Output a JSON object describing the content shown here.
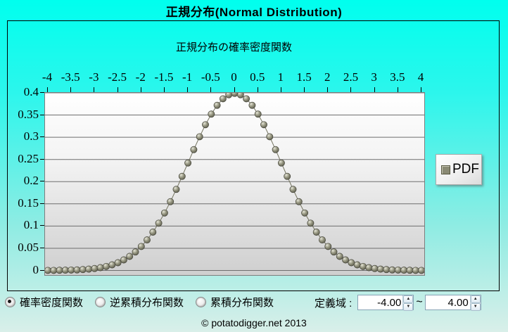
{
  "window": {
    "title": "正規分布(Normal Distribution)",
    "footer": "© potatodigger.net 2013"
  },
  "chart": {
    "title": "正規分布の確率密度関数",
    "legend": {
      "label": "PDF",
      "marker_color": "#8a8a74",
      "position": "right"
    }
  },
  "chart_data": {
    "type": "scatter",
    "title": "正規分布の確率密度関数",
    "xlabel": "",
    "ylabel": "",
    "xlim": [
      -4,
      4
    ],
    "ylim": [
      0,
      0.4
    ],
    "grid": "horizontal",
    "legend_position": "right",
    "x_tick_labels": [
      "-4",
      "-3.5",
      "-3",
      "-2.5",
      "-2",
      "-1.5",
      "-1",
      "-0.5",
      "0",
      "0.5",
      "1",
      "1.5",
      "2",
      "2.5",
      "3",
      "3.5",
      "4"
    ],
    "y_tick_labels": [
      "0.4",
      "0.35",
      "0.3",
      "0.25",
      "0.2",
      "0.15",
      "0.1",
      "0.05",
      "0"
    ],
    "series": [
      {
        "name": "PDF",
        "x": [
          -4,
          -3.875,
          -3.75,
          -3.625,
          -3.5,
          -3.375,
          -3.25,
          -3.125,
          -3,
          -2.875,
          -2.75,
          -2.625,
          -2.5,
          -2.375,
          -2.25,
          -2.125,
          -2,
          -1.875,
          -1.75,
          -1.625,
          -1.5,
          -1.375,
          -1.25,
          -1.125,
          -1,
          -0.875,
          -0.75,
          -0.625,
          -0.5,
          -0.375,
          -0.25,
          -0.125,
          0,
          0.125,
          0.25,
          0.375,
          0.5,
          0.625,
          0.75,
          0.875,
          1,
          1.125,
          1.25,
          1.375,
          1.5,
          1.625,
          1.75,
          1.875,
          2,
          2.125,
          2.25,
          2.375,
          2.5,
          2.625,
          2.75,
          2.875,
          3,
          3.125,
          3.25,
          3.375,
          3.5,
          3.625,
          3.75,
          3.875,
          4
        ],
        "y": [
          0.0001,
          0.0002,
          0.0004,
          0.0006,
          0.0009,
          0.0013,
          0.002,
          0.003,
          0.0044,
          0.0064,
          0.0091,
          0.0127,
          0.0175,
          0.0238,
          0.0317,
          0.0417,
          0.054,
          0.0688,
          0.0863,
          0.1065,
          0.1295,
          0.155,
          0.1826,
          0.2119,
          0.242,
          0.2721,
          0.3011,
          0.3282,
          0.3521,
          0.3719,
          0.3867,
          0.3958,
          0.3989,
          0.3958,
          0.3867,
          0.3719,
          0.3521,
          0.3282,
          0.3011,
          0.2721,
          0.242,
          0.2119,
          0.1826,
          0.155,
          0.1295,
          0.1065,
          0.0863,
          0.0688,
          0.054,
          0.0417,
          0.0317,
          0.0238,
          0.0175,
          0.0127,
          0.0091,
          0.0064,
          0.0044,
          0.003,
          0.002,
          0.0013,
          0.0009,
          0.0006,
          0.0004,
          0.0002,
          0.0001
        ]
      }
    ]
  },
  "controls": {
    "radios": [
      {
        "label": "確率密度関数",
        "selected": true
      },
      {
        "label": "逆累積分布関数",
        "selected": false
      },
      {
        "label": "累積分布関数",
        "selected": false
      }
    ],
    "domain": {
      "label": "定義域 :",
      "min_value": "-4.00",
      "separator": "~",
      "max_value": "4.00"
    }
  },
  "icons": {
    "spin_up": "▲",
    "spin_down": "▼"
  },
  "colors": {
    "background_top": "#00ffee",
    "background_bottom": "#d9efe9",
    "title_text": "#000000",
    "panel_border": "#000000",
    "plot_top": "#ffffff",
    "plot_bottom": "#cfcfcf",
    "gridline": "#6e6e6e",
    "series_dot": "#8a8a74",
    "legend_marker": "#8a8a74"
  }
}
